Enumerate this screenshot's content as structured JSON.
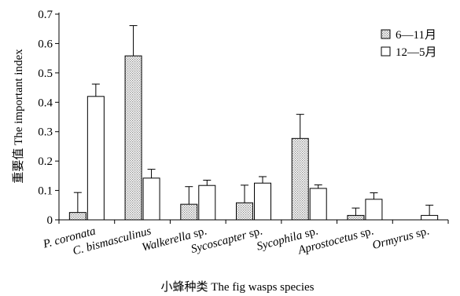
{
  "chart_data": {
    "type": "bar",
    "title": "",
    "xlabel": "小蜂种类 The fig wasps species",
    "ylabel": "重要值 The important index",
    "ylim": [
      0,
      0.7
    ],
    "yticks": [
      0,
      0.1,
      0.2,
      0.3,
      0.4,
      0.5,
      0.6,
      0.7
    ],
    "categories": [
      {
        "plain": "",
        "italic": "P. coronata"
      },
      {
        "plain": "",
        "italic": "C. bismasculinus"
      },
      {
        "plain": " sp.",
        "italic": "Walkerella"
      },
      {
        "plain": " sp.",
        "italic": "Sycoscapter"
      },
      {
        "plain": " sp.",
        "italic": "Sycophila"
      },
      {
        "plain": " sp.",
        "italic": "Aprostocetus"
      },
      {
        "plain": " sp.",
        "italic": "Ormyrus"
      }
    ],
    "series": [
      {
        "name": "6—11月",
        "pattern": "dotted-gray",
        "values": [
          0.025,
          0.558,
          0.053,
          0.058,
          0.277,
          0.015,
          0.0
        ],
        "errors": [
          0.068,
          0.103,
          0.06,
          0.06,
          0.082,
          0.025,
          0.0
        ]
      },
      {
        "name": "12—5月",
        "pattern": "white",
        "values": [
          0.42,
          0.142,
          0.117,
          0.125,
          0.107,
          0.07,
          0.015
        ],
        "errors": [
          0.042,
          0.03,
          0.018,
          0.022,
          0.012,
          0.022,
          0.035
        ]
      }
    ],
    "legend_position": "top-right",
    "grid": false,
    "colors": {
      "axis": "#000000",
      "bar_outline": "#000000",
      "dotted_fill": "#d6d6d6",
      "white_fill": "#ffffff"
    }
  }
}
